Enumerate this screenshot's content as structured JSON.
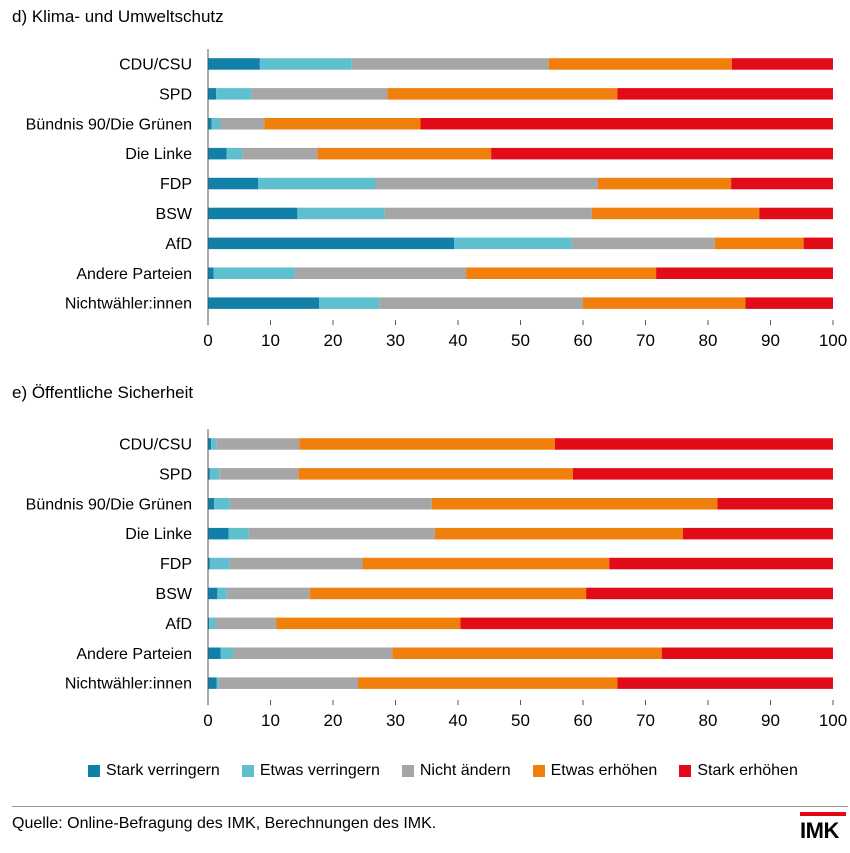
{
  "colors": {
    "stark_verringern": "#1080a8",
    "etwas_verringern": "#5ebfcf",
    "nicht_aendern": "#a6a6a6",
    "etwas_erhoehen": "#f07f0c",
    "stark_erhoehen": "#e20c19",
    "logo_red": "#e30613"
  },
  "legend": [
    "Stark verringern",
    "Etwas verringern",
    "Nicht ändern",
    "Etwas erhöhen",
    "Stark erhöhen"
  ],
  "source": "Quelle: Online-Befragung des IMK, Berechnungen des IMK.",
  "logo_text": "IMK",
  "chart_data": [
    {
      "type": "bar",
      "orientation": "horizontal-stacked",
      "title": "d) Klima- und Umweltschutz",
      "categories": [
        "CDU/CSU",
        "SPD",
        "Bündnis 90/Die Grünen",
        "Die Linke",
        "FDP",
        "BSW",
        "AfD",
        "Andere Parteien",
        "Nichtwähler:innen"
      ],
      "xlim": [
        0,
        100
      ],
      "xticks": [
        0,
        10,
        20,
        30,
        40,
        50,
        60,
        70,
        80,
        90,
        100
      ],
      "series": [
        {
          "name": "Stark verringern",
          "values": [
            8.3,
            1.3,
            0.6,
            3.0,
            8.0,
            14.3,
            39.4,
            0.9,
            17.8
          ]
        },
        {
          "name": "Etwas verringern",
          "values": [
            14.7,
            5.7,
            1.4,
            2.5,
            18.8,
            14.0,
            18.8,
            13.0,
            9.6
          ]
        },
        {
          "name": "Nicht ändern",
          "values": [
            31.5,
            21.7,
            7.0,
            12.0,
            35.6,
            33.1,
            22.9,
            27.4,
            32.6
          ]
        },
        {
          "name": "Etwas erhöhen",
          "values": [
            29.3,
            36.8,
            25.0,
            27.8,
            21.3,
            26.8,
            14.2,
            30.4,
            26.0
          ]
        },
        {
          "name": "Stark erhöhen",
          "values": [
            16.2,
            34.5,
            66.0,
            54.7,
            16.3,
            11.8,
            4.7,
            28.3,
            14.0
          ]
        }
      ]
    },
    {
      "type": "bar",
      "orientation": "horizontal-stacked",
      "title": "e) Öffentliche Sicherheit",
      "categories": [
        "CDU/CSU",
        "SPD",
        "Bündnis 90/Die Grünen",
        "Die Linke",
        "FDP",
        "BSW",
        "AfD",
        "Andere Parteien",
        "Nichtwähler:innen"
      ],
      "xlim": [
        0,
        100
      ],
      "xticks": [
        0,
        10,
        20,
        30,
        40,
        50,
        60,
        70,
        80,
        90,
        100
      ],
      "series": [
        {
          "name": "Stark verringern",
          "values": [
            0.5,
            0.3,
            1.0,
            3.3,
            0.3,
            1.5,
            0.2,
            2.0,
            1.4
          ]
        },
        {
          "name": "Etwas verringern",
          "values": [
            0.8,
            1.5,
            2.5,
            3.2,
            3.2,
            1.5,
            1.0,
            2.0,
            0.3
          ]
        },
        {
          "name": "Nicht ändern",
          "values": [
            13.3,
            12.7,
            32.3,
            29.8,
            21.2,
            13.3,
            9.7,
            25.5,
            22.3
          ]
        },
        {
          "name": "Etwas erhöhen",
          "values": [
            40.9,
            43.9,
            45.7,
            39.7,
            39.5,
            44.2,
            29.5,
            43.1,
            41.5
          ]
        },
        {
          "name": "Stark erhöhen",
          "values": [
            44.5,
            41.6,
            18.5,
            24.0,
            35.8,
            39.5,
            59.6,
            27.4,
            34.5
          ]
        }
      ]
    }
  ]
}
